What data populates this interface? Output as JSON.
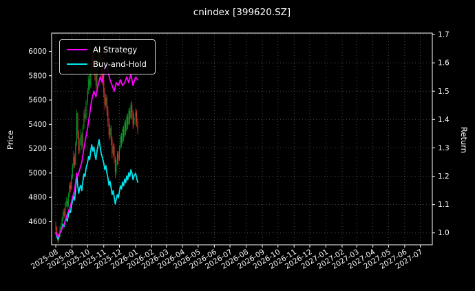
{
  "title": "cnindex [399620.SZ]",
  "axes": {
    "left_label": "Price",
    "right_label": "Return"
  },
  "legend": {
    "items": [
      {
        "label": "AI Strategy",
        "color": "#ff00ff"
      },
      {
        "label": "Buy-and-Hold",
        "color": "#00e5ee"
      }
    ]
  },
  "chart_data": {
    "type": "mixed",
    "title": "cnindex [399620.SZ]",
    "ylabel_left": "Price",
    "ylabel_right": "Return",
    "x_unit": "days since 2025-08-01",
    "xlim": [
      -8,
      722
    ],
    "ylim_left": [
      4410,
      6150
    ],
    "ylim_right": [
      0.958,
      1.705
    ],
    "grid_color": "#4a4a4a",
    "grid_style": "dotted",
    "text_color": "#ffffff",
    "background_color": "#000000",
    "x_ticks": [
      {
        "label": "2025-08",
        "day": 0
      },
      {
        "label": "2025-09",
        "day": 31
      },
      {
        "label": "2025-10",
        "day": 61
      },
      {
        "label": "2025-11",
        "day": 92
      },
      {
        "label": "2025-12",
        "day": 122
      },
      {
        "label": "2026-01",
        "day": 153
      },
      {
        "label": "2026-02",
        "day": 184
      },
      {
        "label": "2026-03",
        "day": 212
      },
      {
        "label": "2026-04",
        "day": 243
      },
      {
        "label": "2026-05",
        "day": 273
      },
      {
        "label": "2026-06",
        "day": 304
      },
      {
        "label": "2026-07",
        "day": 334
      },
      {
        "label": "2026-08",
        "day": 365
      },
      {
        "label": "2026-09",
        "day": 396
      },
      {
        "label": "2026-10",
        "day": 426
      },
      {
        "label": "2026-11",
        "day": 457
      },
      {
        "label": "2026-12",
        "day": 487
      },
      {
        "label": "2027-01",
        "day": 518
      },
      {
        "label": "2027-02",
        "day": 549
      },
      {
        "label": "2027-03",
        "day": 577
      },
      {
        "label": "2027-04",
        "day": 608
      },
      {
        "label": "2027-05",
        "day": 638
      },
      {
        "label": "2027-06",
        "day": 669
      },
      {
        "label": "2027-07",
        "day": 699
      }
    ],
    "y_ticks_left": [
      4600,
      4800,
      5000,
      5200,
      5400,
      5600,
      5800,
      6000
    ],
    "y_ticks_right": [
      1.0,
      1.1,
      1.2,
      1.3,
      1.4,
      1.5,
      1.6,
      1.7
    ],
    "candles": {
      "up_color": "#00a028",
      "down_color": "#e03c31",
      "width_days": 1.5,
      "columns": [
        "day",
        "open",
        "high",
        "low",
        "close"
      ],
      "data": [
        [
          0,
          4570,
          4600,
          4520,
          4545
        ],
        [
          2,
          4545,
          4560,
          4470,
          4490
        ],
        [
          4,
          4490,
          4510,
          4425,
          4445
        ],
        [
          6,
          4445,
          4500,
          4430,
          4480
        ],
        [
          8,
          4480,
          4560,
          4470,
          4545
        ],
        [
          10,
          4545,
          4590,
          4520,
          4565
        ],
        [
          12,
          4565,
          4640,
          4550,
          4620
        ],
        [
          14,
          4620,
          4700,
          4600,
          4680
        ],
        [
          16,
          4680,
          4710,
          4630,
          4650
        ],
        [
          18,
          4650,
          4760,
          4640,
          4745
        ],
        [
          20,
          4745,
          4800,
          4720,
          4770
        ],
        [
          22,
          4770,
          4790,
          4700,
          4730
        ],
        [
          24,
          4730,
          4840,
          4720,
          4820
        ],
        [
          26,
          4820,
          4920,
          4800,
          4900
        ],
        [
          28,
          4900,
          4930,
          4840,
          4870
        ],
        [
          30,
          4870,
          4990,
          4860,
          4970
        ],
        [
          32,
          4970,
          5080,
          4950,
          5060
        ],
        [
          34,
          5060,
          5180,
          5040,
          5130
        ],
        [
          36,
          5130,
          5160,
          5040,
          5070
        ],
        [
          38,
          5070,
          5260,
          5060,
          5240
        ],
        [
          40,
          5240,
          5520,
          5220,
          5490
        ],
        [
          42,
          5490,
          5500,
          5280,
          5310
        ],
        [
          44,
          5310,
          5350,
          5150,
          5180
        ],
        [
          46,
          5180,
          5290,
          5160,
          5270
        ],
        [
          48,
          5270,
          5360,
          5230,
          5310
        ],
        [
          50,
          5310,
          5330,
          5190,
          5220
        ],
        [
          52,
          5220,
          5400,
          5210,
          5380
        ],
        [
          54,
          5380,
          5520,
          5360,
          5490
        ],
        [
          56,
          5490,
          5540,
          5420,
          5450
        ],
        [
          58,
          5450,
          5600,
          5440,
          5580
        ],
        [
          61,
          5580,
          5700,
          5560,
          5680
        ],
        [
          63,
          5680,
          5800,
          5650,
          5770
        ],
        [
          65,
          5770,
          5820,
          5680,
          5720
        ],
        [
          67,
          5720,
          5880,
          5700,
          5860
        ],
        [
          69,
          5860,
          6000,
          5840,
          5960
        ],
        [
          71,
          5960,
          5990,
          5820,
          5860
        ],
        [
          73,
          5860,
          5950,
          5830,
          5920
        ],
        [
          75,
          5920,
          5940,
          5760,
          5800
        ],
        [
          77,
          5800,
          5840,
          5680,
          5720
        ],
        [
          79,
          5720,
          5880,
          5700,
          5860
        ],
        [
          81,
          5860,
          5990,
          5840,
          5950
        ],
        [
          83,
          5950,
          6080,
          5920,
          6040
        ],
        [
          85,
          6040,
          6060,
          5880,
          5920
        ],
        [
          87,
          5920,
          5950,
          5780,
          5820
        ],
        [
          89,
          5820,
          5870,
          5720,
          5760
        ],
        [
          92,
          5760,
          5790,
          5620,
          5660
        ],
        [
          94,
          5660,
          5700,
          5520,
          5560
        ],
        [
          96,
          5560,
          5650,
          5540,
          5620
        ],
        [
          98,
          5620,
          5640,
          5470,
          5510
        ],
        [
          100,
          5510,
          5550,
          5380,
          5420
        ],
        [
          102,
          5420,
          5450,
          5270,
          5310
        ],
        [
          104,
          5310,
          5400,
          5290,
          5370
        ],
        [
          106,
          5370,
          5390,
          5230,
          5270
        ],
        [
          108,
          5270,
          5300,
          5120,
          5160
        ],
        [
          110,
          5160,
          5250,
          5140,
          5220
        ],
        [
          112,
          5220,
          5240,
          5080,
          5120
        ],
        [
          114,
          5120,
          5140,
          4960,
          5010
        ],
        [
          116,
          5010,
          5110,
          4990,
          5080
        ],
        [
          118,
          5080,
          5180,
          5060,
          5160
        ],
        [
          120,
          5160,
          5180,
          5070,
          5110
        ],
        [
          122,
          5110,
          5230,
          5100,
          5210
        ],
        [
          124,
          5210,
          5320,
          5190,
          5300
        ],
        [
          126,
          5300,
          5330,
          5210,
          5250
        ],
        [
          128,
          5250,
          5380,
          5240,
          5360
        ],
        [
          130,
          5360,
          5390,
          5260,
          5300
        ],
        [
          132,
          5300,
          5430,
          5290,
          5410
        ],
        [
          134,
          5410,
          5440,
          5310,
          5350
        ],
        [
          136,
          5350,
          5480,
          5340,
          5460
        ],
        [
          138,
          5460,
          5490,
          5360,
          5400
        ],
        [
          140,
          5400,
          5530,
          5390,
          5510
        ],
        [
          142,
          5510,
          5540,
          5400,
          5450
        ],
        [
          144,
          5450,
          5580,
          5440,
          5560
        ],
        [
          146,
          5560,
          5590,
          5450,
          5500
        ],
        [
          148,
          5500,
          5520,
          5360,
          5400
        ],
        [
          150,
          5400,
          5490,
          5380,
          5460
        ],
        [
          153,
          5460,
          5530,
          5400,
          5500
        ],
        [
          155,
          5500,
          5520,
          5380,
          5420
        ],
        [
          157,
          5420,
          5450,
          5320,
          5360
        ]
      ]
    },
    "series": [
      {
        "name": "Buy-and-Hold",
        "color": "#00e5ee",
        "axis": "right",
        "points": [
          [
            0,
            1.0
          ],
          [
            2,
            0.988
          ],
          [
            4,
            0.978
          ],
          [
            6,
            0.986
          ],
          [
            8,
            1.0
          ],
          [
            10,
            1.004
          ],
          [
            12,
            1.017
          ],
          [
            14,
            1.03
          ],
          [
            16,
            1.023
          ],
          [
            18,
            1.044
          ],
          [
            20,
            1.05
          ],
          [
            22,
            1.041
          ],
          [
            24,
            1.061
          ],
          [
            26,
            1.078
          ],
          [
            28,
            1.072
          ],
          [
            30,
            1.094
          ],
          [
            32,
            1.113
          ],
          [
            34,
            1.129
          ],
          [
            36,
            1.116
          ],
          [
            38,
            1.153
          ],
          [
            40,
            1.208
          ],
          [
            42,
            1.168
          ],
          [
            44,
            1.14
          ],
          [
            46,
            1.16
          ],
          [
            48,
            1.168
          ],
          [
            50,
            1.149
          ],
          [
            52,
            1.184
          ],
          [
            54,
            1.208
          ],
          [
            56,
            1.199
          ],
          [
            58,
            1.228
          ],
          [
            61,
            1.25
          ],
          [
            63,
            1.27
          ],
          [
            65,
            1.259
          ],
          [
            67,
            1.289
          ],
          [
            69,
            1.311
          ],
          [
            71,
            1.289
          ],
          [
            73,
            1.303
          ],
          [
            75,
            1.276
          ],
          [
            77,
            1.259
          ],
          [
            79,
            1.289
          ],
          [
            81,
            1.309
          ],
          [
            83,
            1.329
          ],
          [
            85,
            1.303
          ],
          [
            87,
            1.281
          ],
          [
            89,
            1.267
          ],
          [
            92,
            1.245
          ],
          [
            94,
            1.223
          ],
          [
            96,
            1.237
          ],
          [
            98,
            1.212
          ],
          [
            100,
            1.193
          ],
          [
            102,
            1.168
          ],
          [
            104,
            1.182
          ],
          [
            106,
            1.16
          ],
          [
            108,
            1.135
          ],
          [
            110,
            1.149
          ],
          [
            112,
            1.127
          ],
          [
            114,
            1.102
          ],
          [
            116,
            1.118
          ],
          [
            118,
            1.135
          ],
          [
            120,
            1.124
          ],
          [
            122,
            1.146
          ],
          [
            124,
            1.166
          ],
          [
            126,
            1.155
          ],
          [
            128,
            1.179
          ],
          [
            130,
            1.166
          ],
          [
            132,
            1.19
          ],
          [
            134,
            1.177
          ],
          [
            136,
            1.201
          ],
          [
            138,
            1.188
          ],
          [
            140,
            1.212
          ],
          [
            142,
            1.199
          ],
          [
            144,
            1.223
          ],
          [
            146,
            1.21
          ],
          [
            148,
            1.188
          ],
          [
            150,
            1.201
          ],
          [
            153,
            1.21
          ],
          [
            155,
            1.193
          ],
          [
            157,
            1.179
          ]
        ]
      },
      {
        "name": "AI Strategy",
        "color": "#ff00ff",
        "axis": "right",
        "points": [
          [
            0,
            1.0
          ],
          [
            4,
            0.985
          ],
          [
            8,
            1.0
          ],
          [
            12,
            1.015
          ],
          [
            16,
            1.03
          ],
          [
            20,
            1.055
          ],
          [
            24,
            1.075
          ],
          [
            28,
            1.095
          ],
          [
            32,
            1.125
          ],
          [
            36,
            1.15
          ],
          [
            40,
            1.21
          ],
          [
            42,
            1.2
          ],
          [
            46,
            1.225
          ],
          [
            50,
            1.25
          ],
          [
            54,
            1.3
          ],
          [
            58,
            1.34
          ],
          [
            61,
            1.37
          ],
          [
            65,
            1.42
          ],
          [
            69,
            1.47
          ],
          [
            73,
            1.5
          ],
          [
            77,
            1.48
          ],
          [
            81,
            1.52
          ],
          [
            85,
            1.55
          ],
          [
            89,
            1.53
          ],
          [
            92,
            1.56
          ],
          [
            96,
            1.6
          ],
          [
            100,
            1.57
          ],
          [
            104,
            1.54
          ],
          [
            108,
            1.52
          ],
          [
            112,
            1.5
          ],
          [
            116,
            1.53
          ],
          [
            120,
            1.52
          ],
          [
            124,
            1.54
          ],
          [
            128,
            1.52
          ],
          [
            132,
            1.53
          ],
          [
            136,
            1.55
          ],
          [
            140,
            1.53
          ],
          [
            144,
            1.56
          ],
          [
            148,
            1.52
          ],
          [
            153,
            1.55
          ],
          [
            157,
            1.54
          ]
        ]
      }
    ]
  }
}
